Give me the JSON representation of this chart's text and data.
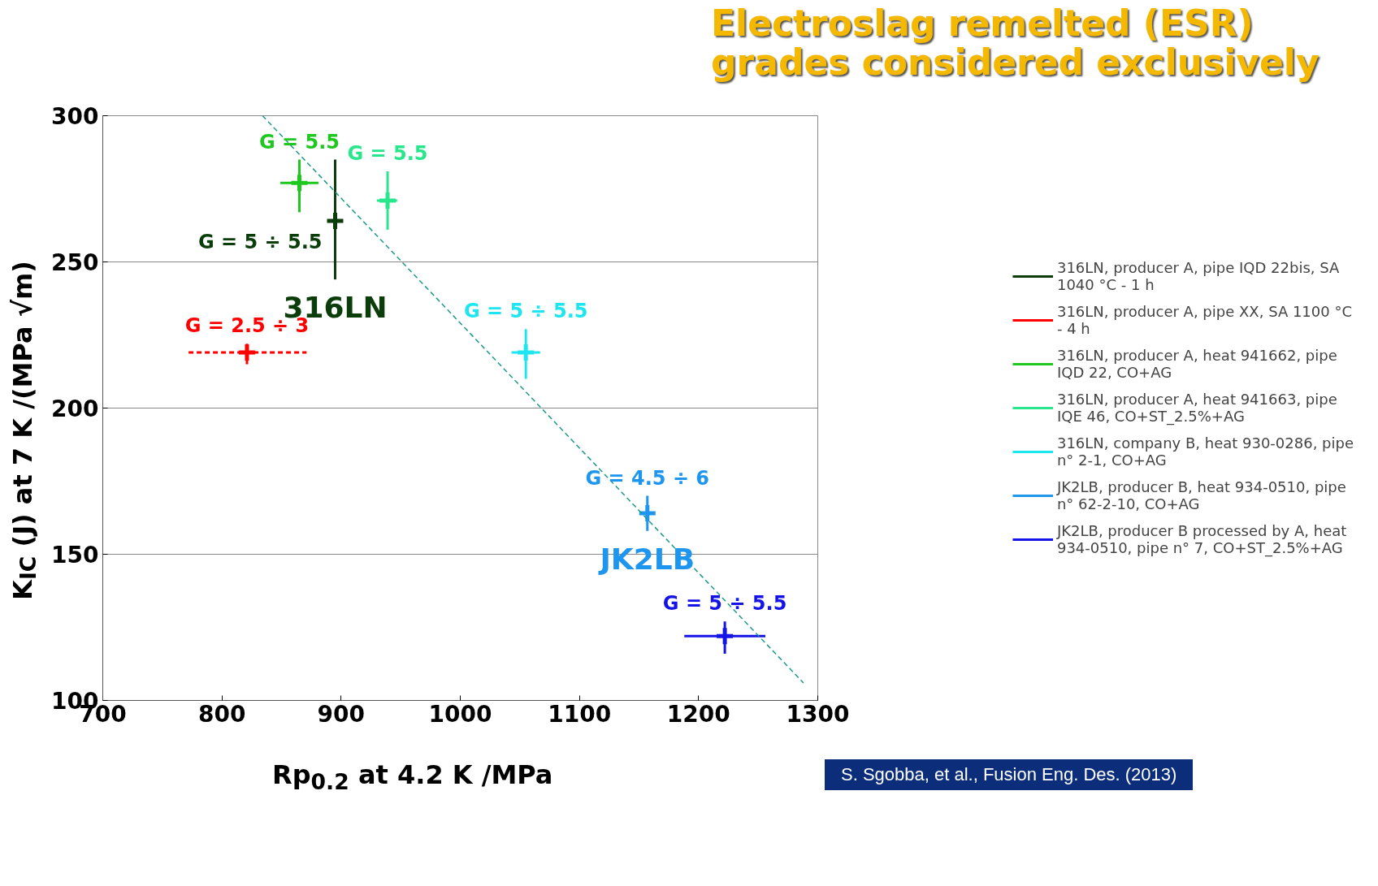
{
  "chart_data": {
    "type": "scatter",
    "title": "Electroslag remelted (ESR) grades considered exclusively",
    "xlabel": "Rp$_{0.2}$ at 4.2 K /MPa",
    "ylabel": "K$_{IC}$ (J) at 7 K /(MPa √m)",
    "xlim": [
      700,
      1300
    ],
    "xticks": [
      700,
      800,
      900,
      1000,
      1100,
      1200,
      1300
    ],
    "ylim": [
      100,
      300
    ],
    "yticks": [
      100,
      150,
      200,
      250,
      300
    ],
    "grid": "y",
    "legend": "right",
    "series": [
      {
        "name": "316LN, producer A, pipe IQD 22bis, SA 1040 °C - 1 h",
        "color": "#0b3d0b",
        "x": [
          895
        ],
        "values": [
          264
        ],
        "errors": [
          [
            244,
            285
          ]
        ],
        "xerrors": [
          [
            892,
            898
          ]
        ],
        "line_style": "solid",
        "marker": "cross"
      },
      {
        "name": "316LN, producer A, pipe XX, SA 1100 °C - 4 h",
        "color": "#ff0000",
        "x": [
          821
        ],
        "values": [
          219
        ],
        "errors": [
          [
            215,
            222
          ]
        ],
        "xerrors": [
          [
            772,
            871
          ]
        ],
        "line_style": "dashed",
        "marker": "cross"
      },
      {
        "name": "316LN, producer A, heat 941662, pipe IQD 22, CO+AG",
        "color": "#1ec81e",
        "x": [
          865
        ],
        "values": [
          277
        ],
        "errors": [
          [
            267,
            285
          ]
        ],
        "xerrors": [
          [
            849,
            881
          ]
        ],
        "line_style": "solid",
        "marker": "cross"
      },
      {
        "name": "316LN, producer A, heat 941663, pipe IQE 46, CO+ST_2.5%+AG",
        "color": "#28e68c",
        "x": [
          939
        ],
        "values": [
          271
        ],
        "errors": [
          [
            261,
            281
          ]
        ],
        "xerrors": [
          [
            930,
            947
          ]
        ],
        "line_style": "solid",
        "marker": "cross"
      },
      {
        "name": "316LN, company B, heat 930-0286, pipe n° 2-1, CO+AG",
        "color": "#1ee6f0",
        "x": [
          1055
        ],
        "values": [
          219
        ],
        "errors": [
          [
            210,
            227
          ]
        ],
        "xerrors": [
          [
            1043,
            1067
          ]
        ],
        "line_style": "solid",
        "marker": "cross"
      },
      {
        "name": "JK2LB, producer B, heat 934-0510, pipe n° 62-2-10, CO+AG",
        "color": "#1e96f0",
        "x": [
          1157
        ],
        "values": [
          164
        ],
        "errors": [
          [
            158,
            170
          ]
        ],
        "xerrors": [
          [
            1152,
            1161
          ]
        ],
        "line_style": "solid",
        "marker": "cross"
      },
      {
        "name": "JK2LB, producer B processed by A, heat 934-0510, pipe n° 7, CO+ST_2.5%+AG",
        "color": "#1414e6",
        "x": [
          1222
        ],
        "values": [
          122
        ],
        "errors": [
          [
            116,
            127
          ]
        ],
        "xerrors": [
          [
            1188,
            1256
          ]
        ],
        "line_style": "solid",
        "marker": "cross"
      },
      {
        "type": "line",
        "color": "#1a9a8a",
        "x": [
          834,
          1288
        ],
        "values": [
          300,
          106
        ],
        "line_style": "dashed"
      }
    ],
    "annotations": [
      {
        "text": "G = 5.5",
        "x": 865,
        "y": 285
      },
      {
        "text": "G = 5.5",
        "x": 939,
        "y": 281
      },
      {
        "text": "G = 5 ÷ 5.5",
        "x": 895,
        "y": 264
      },
      {
        "text": "316LN",
        "x": 895,
        "y": 244
      },
      {
        "text": "G = 2.5 ÷ 3",
        "x": 821,
        "y": 222
      },
      {
        "text": "G = 5 ÷ 5.5",
        "x": 1055,
        "y": 227
      },
      {
        "text": "G = 4.5 ÷ 6",
        "x": 1157,
        "y": 170
      },
      {
        "text": "JK2LB",
        "x": 1157,
        "y": 158
      },
      {
        "text": "G = 5 ÷ 5.5",
        "x": 1222,
        "y": 127
      },
      "S. Sgobba, et al., Fusion Eng. Des. (2013)"
    ]
  }
}
